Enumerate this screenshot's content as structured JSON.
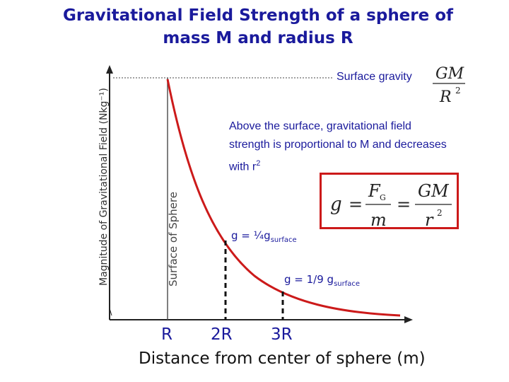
{
  "title_line1": "Gravitational Field Strength of a sphere of",
  "title_line2": "mass M and radius R",
  "y_axis_label": "Magnitude of Gravitational Field (Nkg⁻¹)",
  "surface_line_label": "Surface of Sphere",
  "surface_gravity_label": "Surface gravity",
  "surface_gravity_formula": {
    "num": "GM",
    "den_base": "R",
    "den_exp": "2"
  },
  "description": {
    "text": "Above the surface, gravitational field strength is proportional to M and decreases with r",
    "superscript": "2"
  },
  "main_formula": {
    "lhs": "g",
    "num1": "F",
    "num1_sub": "G",
    "den1": "m",
    "num2": "GM",
    "den2_base": "r",
    "den2_exp": "2"
  },
  "annotation_quarter": {
    "text": "g = ¼g",
    "sub": "surface"
  },
  "annotation_ninth": {
    "text": "g = 1/9 g",
    "sub": "surface"
  },
  "x_ticks": [
    "R",
    "2R",
    "3R"
  ],
  "x_axis_label": "Distance from center of sphere (m)",
  "colors": {
    "title": "#1a1a9c",
    "curve": "#cc1a1a",
    "box": "#cc1a1a",
    "text": "#1a1a9c"
  }
}
